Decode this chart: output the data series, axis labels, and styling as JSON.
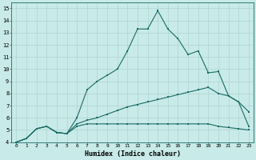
{
  "xlabel": "Humidex (Indice chaleur)",
  "background_color": "#c8eae8",
  "grid_color": "#a8d0ce",
  "line_color": "#1a6b65",
  "xlim": [
    -0.5,
    23.5
  ],
  "ylim": [
    4,
    15.5
  ],
  "xticks": [
    0,
    1,
    2,
    3,
    4,
    5,
    6,
    7,
    8,
    9,
    10,
    11,
    12,
    13,
    14,
    15,
    16,
    17,
    18,
    19,
    20,
    21,
    22,
    23
  ],
  "yticks": [
    4,
    5,
    6,
    7,
    8,
    9,
    10,
    11,
    12,
    13,
    14,
    15
  ],
  "line1_x": [
    0,
    1,
    2,
    3,
    4,
    5,
    6,
    7,
    8,
    9,
    10,
    11,
    12,
    13,
    14,
    15,
    16,
    17,
    18,
    19,
    20,
    21,
    22,
    23
  ],
  "line1_y": [
    4.0,
    4.3,
    5.1,
    5.3,
    4.8,
    4.7,
    6.0,
    8.3,
    9.0,
    9.5,
    10.0,
    11.5,
    13.3,
    13.3,
    14.8,
    13.3,
    12.5,
    11.2,
    11.5,
    9.7,
    9.8,
    7.8,
    7.3,
    6.5
  ],
  "line2_x": [
    0,
    1,
    2,
    3,
    4,
    5,
    6,
    7,
    8,
    9,
    10,
    11,
    12,
    13,
    14,
    15,
    16,
    17,
    18,
    19,
    20,
    21,
    22,
    23
  ],
  "line2_y": [
    4.0,
    4.3,
    5.1,
    5.3,
    4.8,
    4.7,
    5.5,
    5.8,
    6.0,
    6.3,
    6.6,
    6.9,
    7.1,
    7.3,
    7.5,
    7.7,
    7.9,
    8.1,
    8.3,
    8.5,
    8.0,
    7.8,
    7.3,
    5.3
  ],
  "line3_x": [
    0,
    1,
    2,
    3,
    4,
    5,
    6,
    7,
    8,
    9,
    10,
    11,
    12,
    13,
    14,
    15,
    16,
    17,
    18,
    19,
    20,
    21,
    22,
    23
  ],
  "line3_y": [
    4.0,
    4.3,
    5.1,
    5.3,
    4.8,
    4.7,
    5.3,
    5.5,
    5.5,
    5.5,
    5.5,
    5.5,
    5.5,
    5.5,
    5.5,
    5.5,
    5.5,
    5.5,
    5.5,
    5.5,
    5.3,
    5.2,
    5.1,
    5.0
  ]
}
